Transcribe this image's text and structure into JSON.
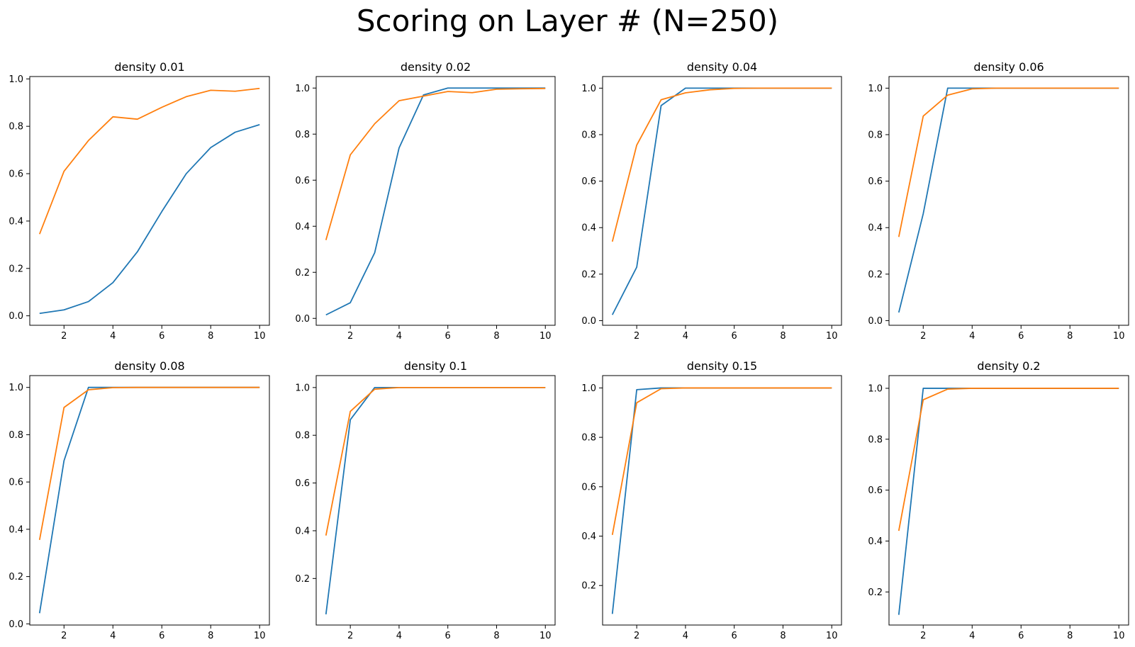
{
  "suptitle": "Scoring on Layer # (N=250)",
  "colors": {
    "series_a": "#1f77b4",
    "series_b": "#ff7f0e",
    "axes": "#000000"
  },
  "chart_data": [
    {
      "type": "line",
      "title": "density 0.01",
      "xlim": [
        0.6,
        10.4
      ],
      "ylim": [
        -0.04,
        1.01
      ],
      "xticks": [
        2,
        4,
        6,
        8,
        10
      ],
      "yticks": [
        0.0,
        0.2,
        0.4,
        0.6,
        0.8,
        1.0
      ],
      "x": [
        1,
        2,
        3,
        4,
        5,
        6,
        7,
        8,
        9,
        10
      ],
      "series": [
        {
          "values": [
            0.01,
            0.025,
            0.06,
            0.14,
            0.27,
            0.44,
            0.6,
            0.71,
            0.775,
            0.807
          ]
        },
        {
          "values": [
            0.345,
            0.61,
            0.74,
            0.84,
            0.83,
            0.88,
            0.925,
            0.952,
            0.948,
            0.96
          ]
        }
      ]
    },
    {
      "type": "line",
      "title": "density 0.02",
      "xlim": [
        0.6,
        10.4
      ],
      "ylim": [
        -0.03,
        1.05
      ],
      "xticks": [
        2,
        4,
        6,
        8,
        10
      ],
      "yticks": [
        0.0,
        0.2,
        0.4,
        0.6,
        0.8,
        1.0
      ],
      "x": [
        1,
        2,
        3,
        4,
        5,
        6,
        7,
        8,
        9,
        10
      ],
      "series": [
        {
          "values": [
            0.015,
            0.068,
            0.285,
            0.74,
            0.97,
            1.0,
            1.0,
            1.0,
            1.0,
            1.0
          ]
        },
        {
          "values": [
            0.34,
            0.71,
            0.845,
            0.945,
            0.965,
            0.985,
            0.98,
            0.995,
            0.997,
            0.998
          ]
        }
      ]
    },
    {
      "type": "line",
      "title": "density 0.04",
      "xlim": [
        0.6,
        10.4
      ],
      "ylim": [
        -0.02,
        1.05
      ],
      "xticks": [
        2,
        4,
        6,
        8,
        10
      ],
      "yticks": [
        0.0,
        0.2,
        0.4,
        0.6,
        0.8,
        1.0
      ],
      "x": [
        1,
        2,
        3,
        4,
        5,
        6,
        7,
        8,
        9,
        10
      ],
      "series": [
        {
          "values": [
            0.025,
            0.23,
            0.925,
            1.0,
            1.0,
            1.0,
            1.0,
            1.0,
            1.0,
            1.0
          ]
        },
        {
          "values": [
            0.34,
            0.755,
            0.95,
            0.98,
            0.993,
            0.999,
            1.0,
            1.0,
            1.0,
            1.0
          ]
        }
      ]
    },
    {
      "type": "line",
      "title": "density 0.06",
      "xlim": [
        0.6,
        10.4
      ],
      "ylim": [
        -0.02,
        1.05
      ],
      "xticks": [
        2,
        4,
        6,
        8,
        10
      ],
      "yticks": [
        0.0,
        0.2,
        0.4,
        0.6,
        0.8,
        1.0
      ],
      "x": [
        1,
        2,
        3,
        4,
        5,
        6,
        7,
        8,
        9,
        10
      ],
      "series": [
        {
          "values": [
            0.035,
            0.46,
            1.0,
            1.0,
            1.0,
            1.0,
            1.0,
            1.0,
            1.0,
            1.0
          ]
        },
        {
          "values": [
            0.36,
            0.88,
            0.97,
            0.997,
            1.0,
            1.0,
            1.0,
            1.0,
            1.0,
            1.0
          ]
        }
      ]
    },
    {
      "type": "line",
      "title": "density 0.08",
      "xlim": [
        0.6,
        10.4
      ],
      "ylim": [
        -0.005,
        1.05
      ],
      "xticks": [
        2,
        4,
        6,
        8,
        10
      ],
      "yticks": [
        0.0,
        0.2,
        0.4,
        0.6,
        0.8,
        1.0
      ],
      "x": [
        1,
        2,
        3,
        4,
        5,
        6,
        7,
        8,
        9,
        10
      ],
      "series": [
        {
          "values": [
            0.045,
            0.69,
            1.0,
            1.0,
            1.0,
            1.0,
            1.0,
            1.0,
            1.0,
            1.0
          ]
        },
        {
          "values": [
            0.355,
            0.915,
            0.99,
            0.999,
            1.0,
            1.0,
            1.0,
            1.0,
            1.0,
            1.0
          ]
        }
      ]
    },
    {
      "type": "line",
      "title": "density 0.1",
      "xlim": [
        0.6,
        10.4
      ],
      "ylim": [
        0.005,
        1.05
      ],
      "xticks": [
        2,
        4,
        6,
        8,
        10
      ],
      "yticks": [
        0.2,
        0.4,
        0.6,
        0.8,
        1.0
      ],
      "x": [
        1,
        2,
        3,
        4,
        5,
        6,
        7,
        8,
        9,
        10
      ],
      "series": [
        {
          "values": [
            0.05,
            0.865,
            1.0,
            1.0,
            1.0,
            1.0,
            1.0,
            1.0,
            1.0,
            1.0
          ]
        },
        {
          "values": [
            0.38,
            0.9,
            0.993,
            1.0,
            1.0,
            1.0,
            1.0,
            1.0,
            1.0,
            1.0
          ]
        }
      ]
    },
    {
      "type": "line",
      "title": "density 0.15",
      "xlim": [
        0.6,
        10.4
      ],
      "ylim": [
        0.04,
        1.05
      ],
      "xticks": [
        2,
        4,
        6,
        8,
        10
      ],
      "yticks": [
        0.2,
        0.4,
        0.6,
        0.8,
        1.0
      ],
      "x": [
        1,
        2,
        3,
        4,
        5,
        6,
        7,
        8,
        9,
        10
      ],
      "series": [
        {
          "values": [
            0.085,
            0.993,
            1.0,
            1.0,
            1.0,
            1.0,
            1.0,
            1.0,
            1.0,
            1.0
          ]
        },
        {
          "values": [
            0.405,
            0.94,
            0.997,
            1.0,
            1.0,
            1.0,
            1.0,
            1.0,
            1.0,
            1.0
          ]
        }
      ]
    },
    {
      "type": "line",
      "title": "density 0.2",
      "xlim": [
        0.6,
        10.4
      ],
      "ylim": [
        0.07,
        1.05
      ],
      "xticks": [
        2,
        4,
        6,
        8,
        10
      ],
      "yticks": [
        0.2,
        0.4,
        0.6,
        0.8,
        1.0
      ],
      "x": [
        1,
        2,
        3,
        4,
        5,
        6,
        7,
        8,
        9,
        10
      ],
      "series": [
        {
          "values": [
            0.11,
            1.0,
            1.0,
            1.0,
            1.0,
            1.0,
            1.0,
            1.0,
            1.0,
            1.0
          ]
        },
        {
          "values": [
            0.44,
            0.955,
            0.997,
            1.0,
            1.0,
            1.0,
            1.0,
            1.0,
            1.0,
            1.0
          ]
        }
      ]
    }
  ]
}
